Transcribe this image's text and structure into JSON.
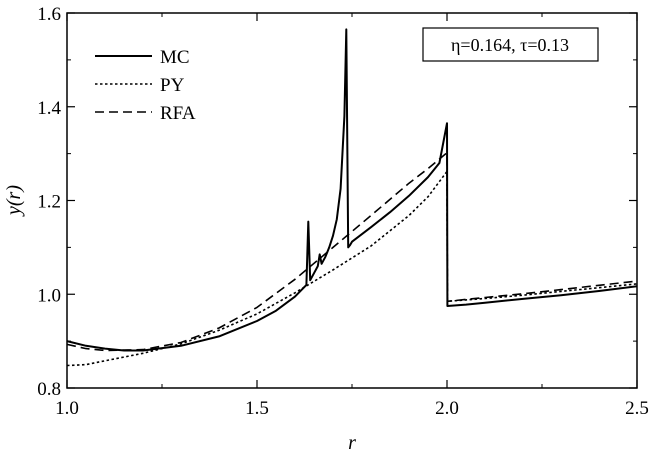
{
  "chart_data": {
    "type": "line",
    "xlabel": "r",
    "ylabel": "y(r)",
    "xlim": [
      1.0,
      2.5
    ],
    "ylim": [
      0.8,
      1.6
    ],
    "xticks": [
      1.0,
      1.5,
      2.0,
      2.5
    ],
    "xtick_labels": [
      "1.0",
      "1.5",
      "2.0",
      "2.5"
    ],
    "yticks": [
      0.8,
      1.0,
      1.2,
      1.4,
      1.6
    ],
    "ytick_labels": [
      "0.8",
      "1.0",
      "1.2",
      "1.4",
      "1.6"
    ],
    "grid": false,
    "legend_position": "top-left",
    "annotation": "η=0.164, τ=0.13",
    "series": [
      {
        "name": "MC",
        "style": "solid",
        "x": [
          1.0,
          1.05,
          1.1,
          1.15,
          1.2,
          1.3,
          1.4,
          1.5,
          1.55,
          1.6,
          1.63,
          1.635,
          1.64,
          1.65,
          1.66,
          1.665,
          1.67,
          1.68,
          1.69,
          1.7,
          1.71,
          1.72,
          1.73,
          1.735,
          1.74,
          1.745,
          1.75,
          1.8,
          1.85,
          1.9,
          1.95,
          1.98,
          2.0,
          2.001,
          2.05,
          2.1,
          2.2,
          2.3,
          2.4,
          2.5
        ],
        "y": [
          0.9,
          0.89,
          0.884,
          0.88,
          0.88,
          0.89,
          0.91,
          0.943,
          0.965,
          0.995,
          1.02,
          1.155,
          1.03,
          1.045,
          1.06,
          1.085,
          1.065,
          1.08,
          1.1,
          1.125,
          1.16,
          1.225,
          1.38,
          1.565,
          1.1,
          1.105,
          1.112,
          1.143,
          1.175,
          1.21,
          1.25,
          1.28,
          1.365,
          0.975,
          0.978,
          0.982,
          0.99,
          0.998,
          1.007,
          1.017
        ]
      },
      {
        "name": "PY",
        "style": "dotted",
        "x": [
          1.0,
          1.05,
          1.1,
          1.2,
          1.3,
          1.4,
          1.5,
          1.6,
          1.7,
          1.8,
          1.9,
          1.95,
          2.0,
          2.001,
          2.1,
          2.2,
          2.3,
          2.4,
          2.5
        ],
        "y": [
          0.848,
          0.85,
          0.858,
          0.874,
          0.894,
          0.923,
          0.958,
          1.003,
          1.052,
          1.103,
          1.168,
          1.208,
          1.262,
          0.985,
          0.991,
          0.998,
          1.006,
          1.014,
          1.022
        ]
      },
      {
        "name": "RFA",
        "style": "dashed",
        "x": [
          1.0,
          1.05,
          1.1,
          1.2,
          1.3,
          1.4,
          1.5,
          1.6,
          1.7,
          1.8,
          1.9,
          1.95,
          2.0,
          2.001,
          2.1,
          2.2,
          2.3,
          2.4,
          2.5
        ],
        "y": [
          0.893,
          0.884,
          0.88,
          0.882,
          0.897,
          0.928,
          0.972,
          1.032,
          1.1,
          1.168,
          1.237,
          1.268,
          1.302,
          0.985,
          0.993,
          1.001,
          1.01,
          1.019,
          1.028
        ]
      }
    ]
  }
}
